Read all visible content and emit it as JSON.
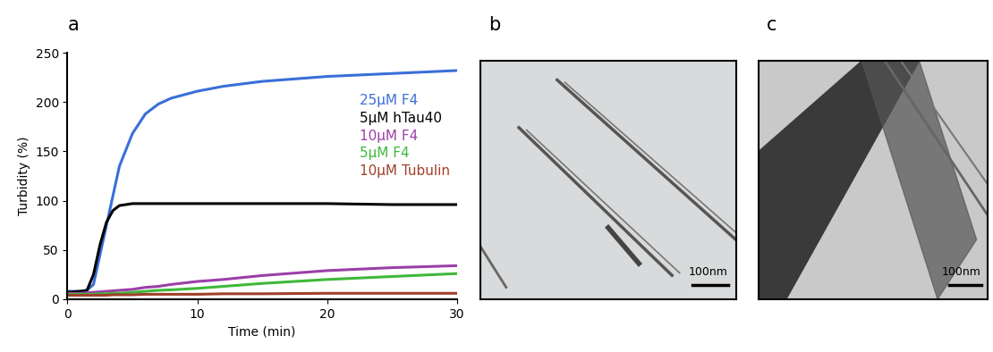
{
  "chart_data": {
    "type": "line",
    "title": "a",
    "x_label": "Time (min)",
    "y_label": "Turbidity (%)",
    "x": [
      0,
      1,
      1.5,
      2,
      2.5,
      3,
      3.5,
      4,
      5,
      6,
      7,
      8,
      10,
      12,
      15,
      20,
      25,
      30
    ],
    "series": [
      {
        "name": "25µM F4",
        "color": "#3a6fd8",
        "values": [
          8,
          8,
          9,
          15,
          45,
          75,
          105,
          135,
          168,
          188,
          198,
          204,
          211,
          216,
          221,
          226,
          229,
          232
        ]
      },
      {
        "name": "5µM hTau40",
        "color": "#000000",
        "values": [
          7,
          8,
          9,
          25,
          55,
          78,
          90,
          95,
          97,
          97,
          97,
          97,
          97,
          97,
          97,
          97,
          96,
          96
        ]
      },
      {
        "name": "10µM F4",
        "color": "#9b3fa8",
        "values": [
          6,
          6,
          6.5,
          7,
          7.5,
          8,
          8.5,
          9,
          10,
          12,
          13,
          15,
          18,
          20,
          24,
          29,
          32,
          34
        ]
      },
      {
        "name": "5µM F4",
        "color": "#3fb83a",
        "values": [
          5,
          5,
          5,
          5,
          5.5,
          5.5,
          6,
          6,
          7,
          8,
          9,
          9.5,
          11,
          13,
          16,
          20,
          23,
          26
        ]
      },
      {
        "name": "10µM Tubulin",
        "color": "#a0402a",
        "values": [
          4,
          4,
          4,
          4,
          4,
          4,
          4.5,
          4.5,
          4.5,
          5,
          5,
          5,
          5,
          5.5,
          5.5,
          6,
          6,
          6
        ]
      }
    ],
    "xlim": [
      0,
      30
    ],
    "xticks": [
      0,
      10,
      20,
      30
    ],
    "ylim": [
      0,
      250
    ],
    "yticks": [
      0,
      50,
      100,
      150,
      200,
      250
    ],
    "legend": "upper right"
  },
  "images": [
    {
      "label": "b",
      "scale_bar": "100nm"
    },
    {
      "label": "c",
      "scale_bar": "100nm"
    }
  ]
}
